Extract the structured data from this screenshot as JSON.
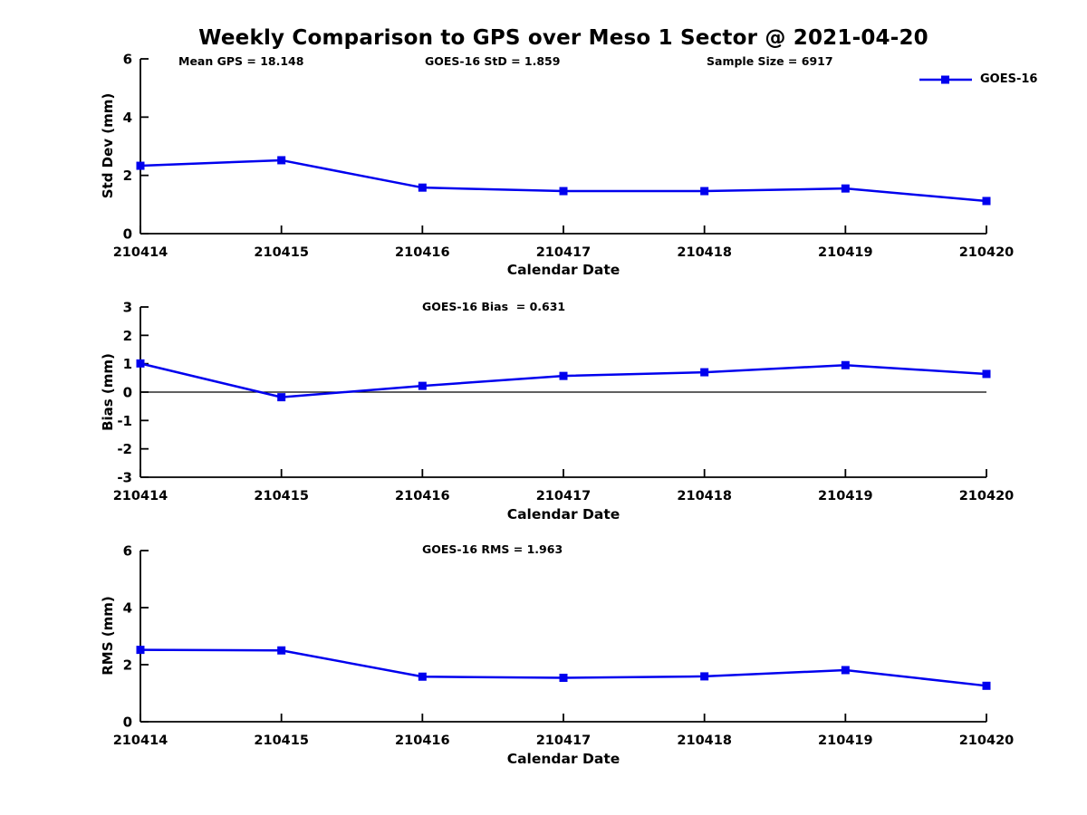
{
  "title": "Weekly Comparison to GPS over Meso 1 Sector @ 2021-04-20",
  "legend": {
    "label": "GOES-16"
  },
  "colors": {
    "line": "#0000ee",
    "axis": "#000000"
  },
  "stats": {
    "mean_gps": 18.148,
    "goes16_std": 1.859,
    "sample_size": 6917,
    "goes16_bias": 0.631,
    "goes16_rms": 1.963
  },
  "chart_data": [
    {
      "type": "line",
      "title_annotations": [
        {
          "text": "Mean GPS = 18.148"
        },
        {
          "text": "GOES-16 StD = 1.859"
        },
        {
          "text": "Sample Size = 6917"
        }
      ],
      "categories": [
        "210414",
        "210415",
        "210416",
        "210417",
        "210418",
        "210419",
        "210420"
      ],
      "series": [
        {
          "name": "GOES-16",
          "values": [
            2.33,
            2.52,
            1.58,
            1.46,
            1.46,
            1.55,
            1.12
          ]
        }
      ],
      "xlabel": "Calendar Date",
      "ylabel": "Std Dev (mm)",
      "ylim": [
        0,
        6
      ],
      "yticks": [
        0,
        2,
        4,
        6
      ],
      "zero_line": false,
      "legend_position": "top-right",
      "grid": false
    },
    {
      "type": "line",
      "title_annotations": [
        {
          "text": "GOES-16 Bias  = 0.631"
        }
      ],
      "categories": [
        "210414",
        "210415",
        "210416",
        "210417",
        "210418",
        "210419",
        "210420"
      ],
      "series": [
        {
          "name": "GOES-16",
          "values": [
            1.01,
            -0.18,
            0.22,
            0.57,
            0.7,
            0.95,
            0.64
          ]
        }
      ],
      "xlabel": "Calendar Date",
      "ylabel": "Bias (mm)",
      "ylim": [
        -3,
        3
      ],
      "yticks": [
        -3,
        -2,
        -1,
        0,
        1,
        2,
        3
      ],
      "zero_line": true,
      "grid": false
    },
    {
      "type": "line",
      "title_annotations": [
        {
          "text": "GOES-16 RMS = 1.963"
        }
      ],
      "categories": [
        "210414",
        "210415",
        "210416",
        "210417",
        "210418",
        "210419",
        "210420"
      ],
      "series": [
        {
          "name": "GOES-16",
          "values": [
            2.52,
            2.5,
            1.58,
            1.54,
            1.59,
            1.81,
            1.26
          ]
        }
      ],
      "xlabel": "Calendar Date",
      "ylabel": "RMS (mm)",
      "ylim": [
        0,
        6
      ],
      "yticks": [
        0,
        2,
        4,
        6
      ],
      "zero_line": false,
      "grid": false
    }
  ]
}
